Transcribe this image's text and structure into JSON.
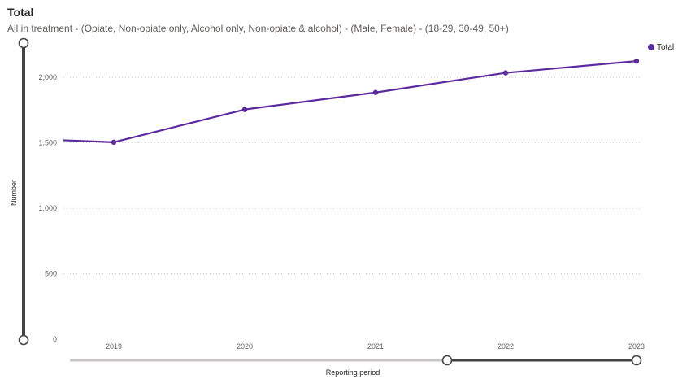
{
  "header": {
    "title": "Total",
    "subtitle": "All in treatment - (Opiate, Non-opiate only, Alcohol only, Non-opiate & alcohol) - (Male, Female) - (18-29, 30-49, 50+)"
  },
  "colors": {
    "series": "#5b2a9e",
    "grid": "#c8c6c4",
    "slider_track": "#c8c6c4",
    "slider_active": "#444444"
  },
  "chart_data": {
    "type": "line",
    "x": [
      "",
      "2019",
      "2020",
      "2021",
      "2022",
      "2023"
    ],
    "x_tick_labels": [
      "2019",
      "2020",
      "2021",
      "2022",
      "2023"
    ],
    "series": [
      {
        "name": "Total",
        "values": [
          1520,
          1505,
          1755,
          1885,
          2035,
          2125
        ]
      }
    ],
    "y_tick_labels": [
      "0",
      "500",
      "1,000",
      "1,500",
      "2,000"
    ],
    "y_ticks": [
      0,
      500,
      1000,
      1500,
      2000
    ],
    "ylim": [
      0,
      2250
    ],
    "xlabel": "Reporting period",
    "ylabel": "Number",
    "legend": {
      "position": "top-right",
      "label": "Total"
    },
    "grid": true,
    "x_range_slider": {
      "start": 0.0,
      "end": 0.75,
      "selected_start": 0.58,
      "selected_end": 1.0
    },
    "y_range_slider": {
      "start": 0.0,
      "end": 1.0
    }
  }
}
